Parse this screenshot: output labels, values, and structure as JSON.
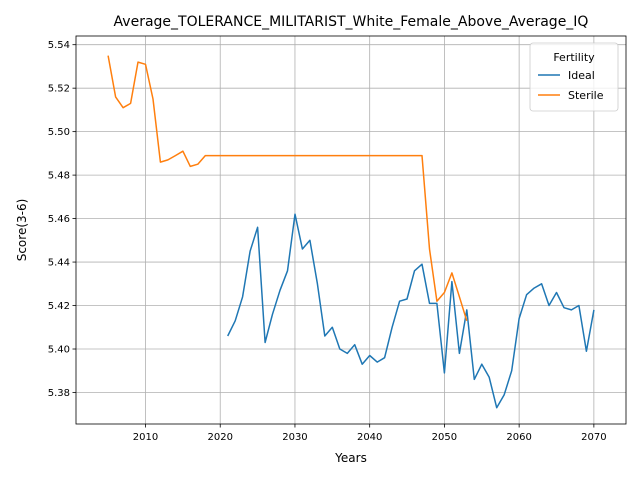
{
  "chart_data": {
    "type": "line",
    "title": "Average_TOLERANCE_MILITARIST_White_Female_Above_Average_IQ",
    "xlabel": "Years",
    "ylabel": "Score(3-6)",
    "xlim": [
      2000.7,
      2074.3
    ],
    "ylim": [
      5.3655,
      5.544
    ],
    "x_ticks": [
      2010,
      2020,
      2030,
      2040,
      2050,
      2060,
      2070
    ],
    "y_ticks": [
      5.38,
      5.4,
      5.42,
      5.44,
      5.46,
      5.48,
      5.5,
      5.52,
      5.54
    ],
    "grid": true,
    "legend": {
      "title": "Fertility",
      "position": "top-right"
    },
    "series": [
      {
        "name": "Ideal",
        "color": "#1f77b4",
        "points": [
          [
            2021,
            5.406
          ],
          [
            2022,
            5.413
          ],
          [
            2023,
            5.424
          ],
          [
            2024,
            5.445
          ],
          [
            2025,
            5.456
          ],
          [
            2026,
            5.403
          ],
          [
            2027,
            5.416
          ],
          [
            2028,
            5.427
          ],
          [
            2029,
            5.436
          ],
          [
            2030,
            5.462
          ],
          [
            2031,
            5.446
          ],
          [
            2032,
            5.45
          ],
          [
            2033,
            5.43
          ],
          [
            2034,
            5.406
          ],
          [
            2035,
            5.41
          ],
          [
            2036,
            5.4
          ],
          [
            2037,
            5.398
          ],
          [
            2038,
            5.402
          ],
          [
            2039,
            5.393
          ],
          [
            2040,
            5.397
          ],
          [
            2041,
            5.394
          ],
          [
            2042,
            5.396
          ],
          [
            2043,
            5.41
          ],
          [
            2044,
            5.422
          ],
          [
            2045,
            5.423
          ],
          [
            2046,
            5.436
          ],
          [
            2047,
            5.439
          ],
          [
            2048,
            5.421
          ],
          [
            2049,
            5.421
          ],
          [
            2050,
            5.389
          ],
          [
            2051,
            5.431
          ],
          [
            2052,
            5.398
          ],
          [
            2053,
            5.418
          ],
          [
            2054,
            5.386
          ],
          [
            2055,
            5.393
          ],
          [
            2056,
            5.387
          ],
          [
            2057,
            5.373
          ],
          [
            2058,
            5.379
          ],
          [
            2059,
            5.39
          ],
          [
            2060,
            5.414
          ],
          [
            2061,
            5.425
          ],
          [
            2062,
            5.428
          ],
          [
            2063,
            5.43
          ],
          [
            2064,
            5.42
          ],
          [
            2065,
            5.426
          ],
          [
            2066,
            5.419
          ],
          [
            2067,
            5.418
          ],
          [
            2068,
            5.42
          ],
          [
            2069,
            5.399
          ],
          [
            2070,
            5.418
          ]
        ]
      },
      {
        "name": "Sterile",
        "color": "#ff7f0e",
        "points": [
          [
            2005,
            5.535
          ],
          [
            2006,
            5.516
          ],
          [
            2007,
            5.511
          ],
          [
            2008,
            5.513
          ],
          [
            2009,
            5.532
          ],
          [
            2010,
            5.531
          ],
          [
            2011,
            5.515
          ],
          [
            2012,
            5.486
          ],
          [
            2013,
            5.487
          ],
          [
            2014,
            5.489
          ],
          [
            2015,
            5.491
          ],
          [
            2016,
            5.484
          ],
          [
            2017,
            5.485
          ],
          [
            2018,
            5.489
          ],
          [
            2019,
            5.489
          ],
          [
            2020,
            5.489
          ],
          [
            2025,
            5.489
          ],
          [
            2030,
            5.489
          ],
          [
            2035,
            5.489
          ],
          [
            2040,
            5.489
          ],
          [
            2045,
            5.489
          ],
          [
            2047,
            5.489
          ],
          [
            2048,
            5.446
          ],
          [
            2049,
            5.422
          ],
          [
            2050,
            5.426
          ],
          [
            2051,
            5.435
          ],
          [
            2052,
            5.424
          ],
          [
            2053,
            5.413
          ]
        ]
      }
    ]
  }
}
